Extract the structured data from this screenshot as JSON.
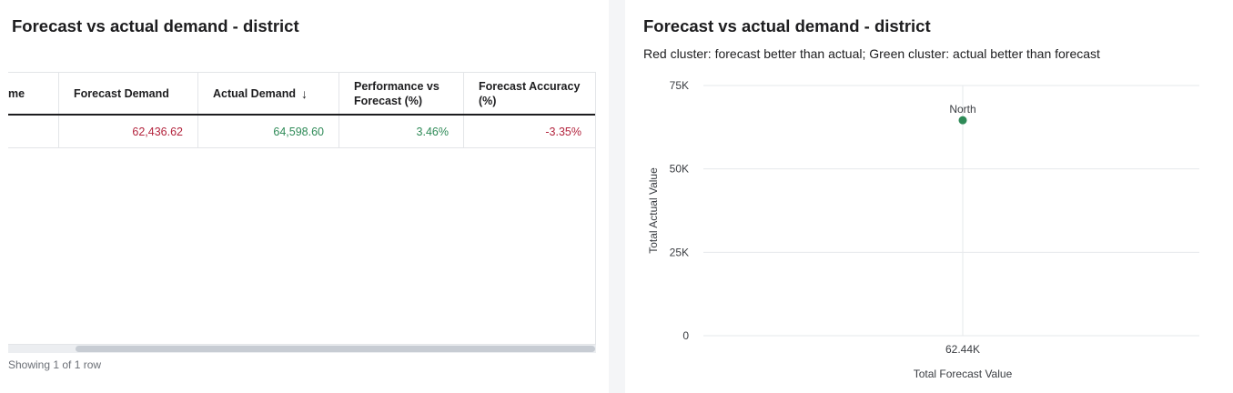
{
  "left": {
    "title": "Forecast vs actual demand - district",
    "table": {
      "columns": [
        {
          "label": "me",
          "sort_icon": ""
        },
        {
          "label": "Forecast Demand",
          "sort_icon": ""
        },
        {
          "label": "Actual Demand",
          "sort_icon": "↓"
        },
        {
          "label": "Performance vs Forecast (%)",
          "sort_icon": ""
        },
        {
          "label": "Forecast Accuracy (%)",
          "sort_icon": ""
        }
      ],
      "rows": [
        {
          "cells": [
            "",
            "62,436.62",
            "64,598.60",
            "3.46%",
            "-3.35%"
          ]
        }
      ]
    },
    "row_count": "Showing 1 of 1 row",
    "colors": {
      "negative": "#b3243d",
      "positive": "#2e8a57"
    }
  },
  "right": {
    "title": "Forecast vs actual demand - district",
    "subtitle": "Red cluster: forecast better than actual; Green cluster: actual better than forecast"
  },
  "chart_data": {
    "type": "scatter",
    "title": "Forecast vs actual demand - district",
    "subtitle": "Red cluster: forecast better than actual; Green cluster: actual better than forecast",
    "xlabel": "Total Forecast Value",
    "ylabel": "Total Actual Value",
    "ylim": [
      0,
      75000
    ],
    "y_ticks": [
      0,
      25000,
      50000,
      75000
    ],
    "y_tick_labels": [
      "0",
      "25K",
      "50K",
      "75K"
    ],
    "x_ticks": [
      62436.62
    ],
    "x_tick_labels": [
      "62.44K"
    ],
    "grid": true,
    "points": [
      {
        "label": "North",
        "x": 62436.62,
        "y": 64598.6,
        "color": "#2e8a57"
      }
    ]
  }
}
